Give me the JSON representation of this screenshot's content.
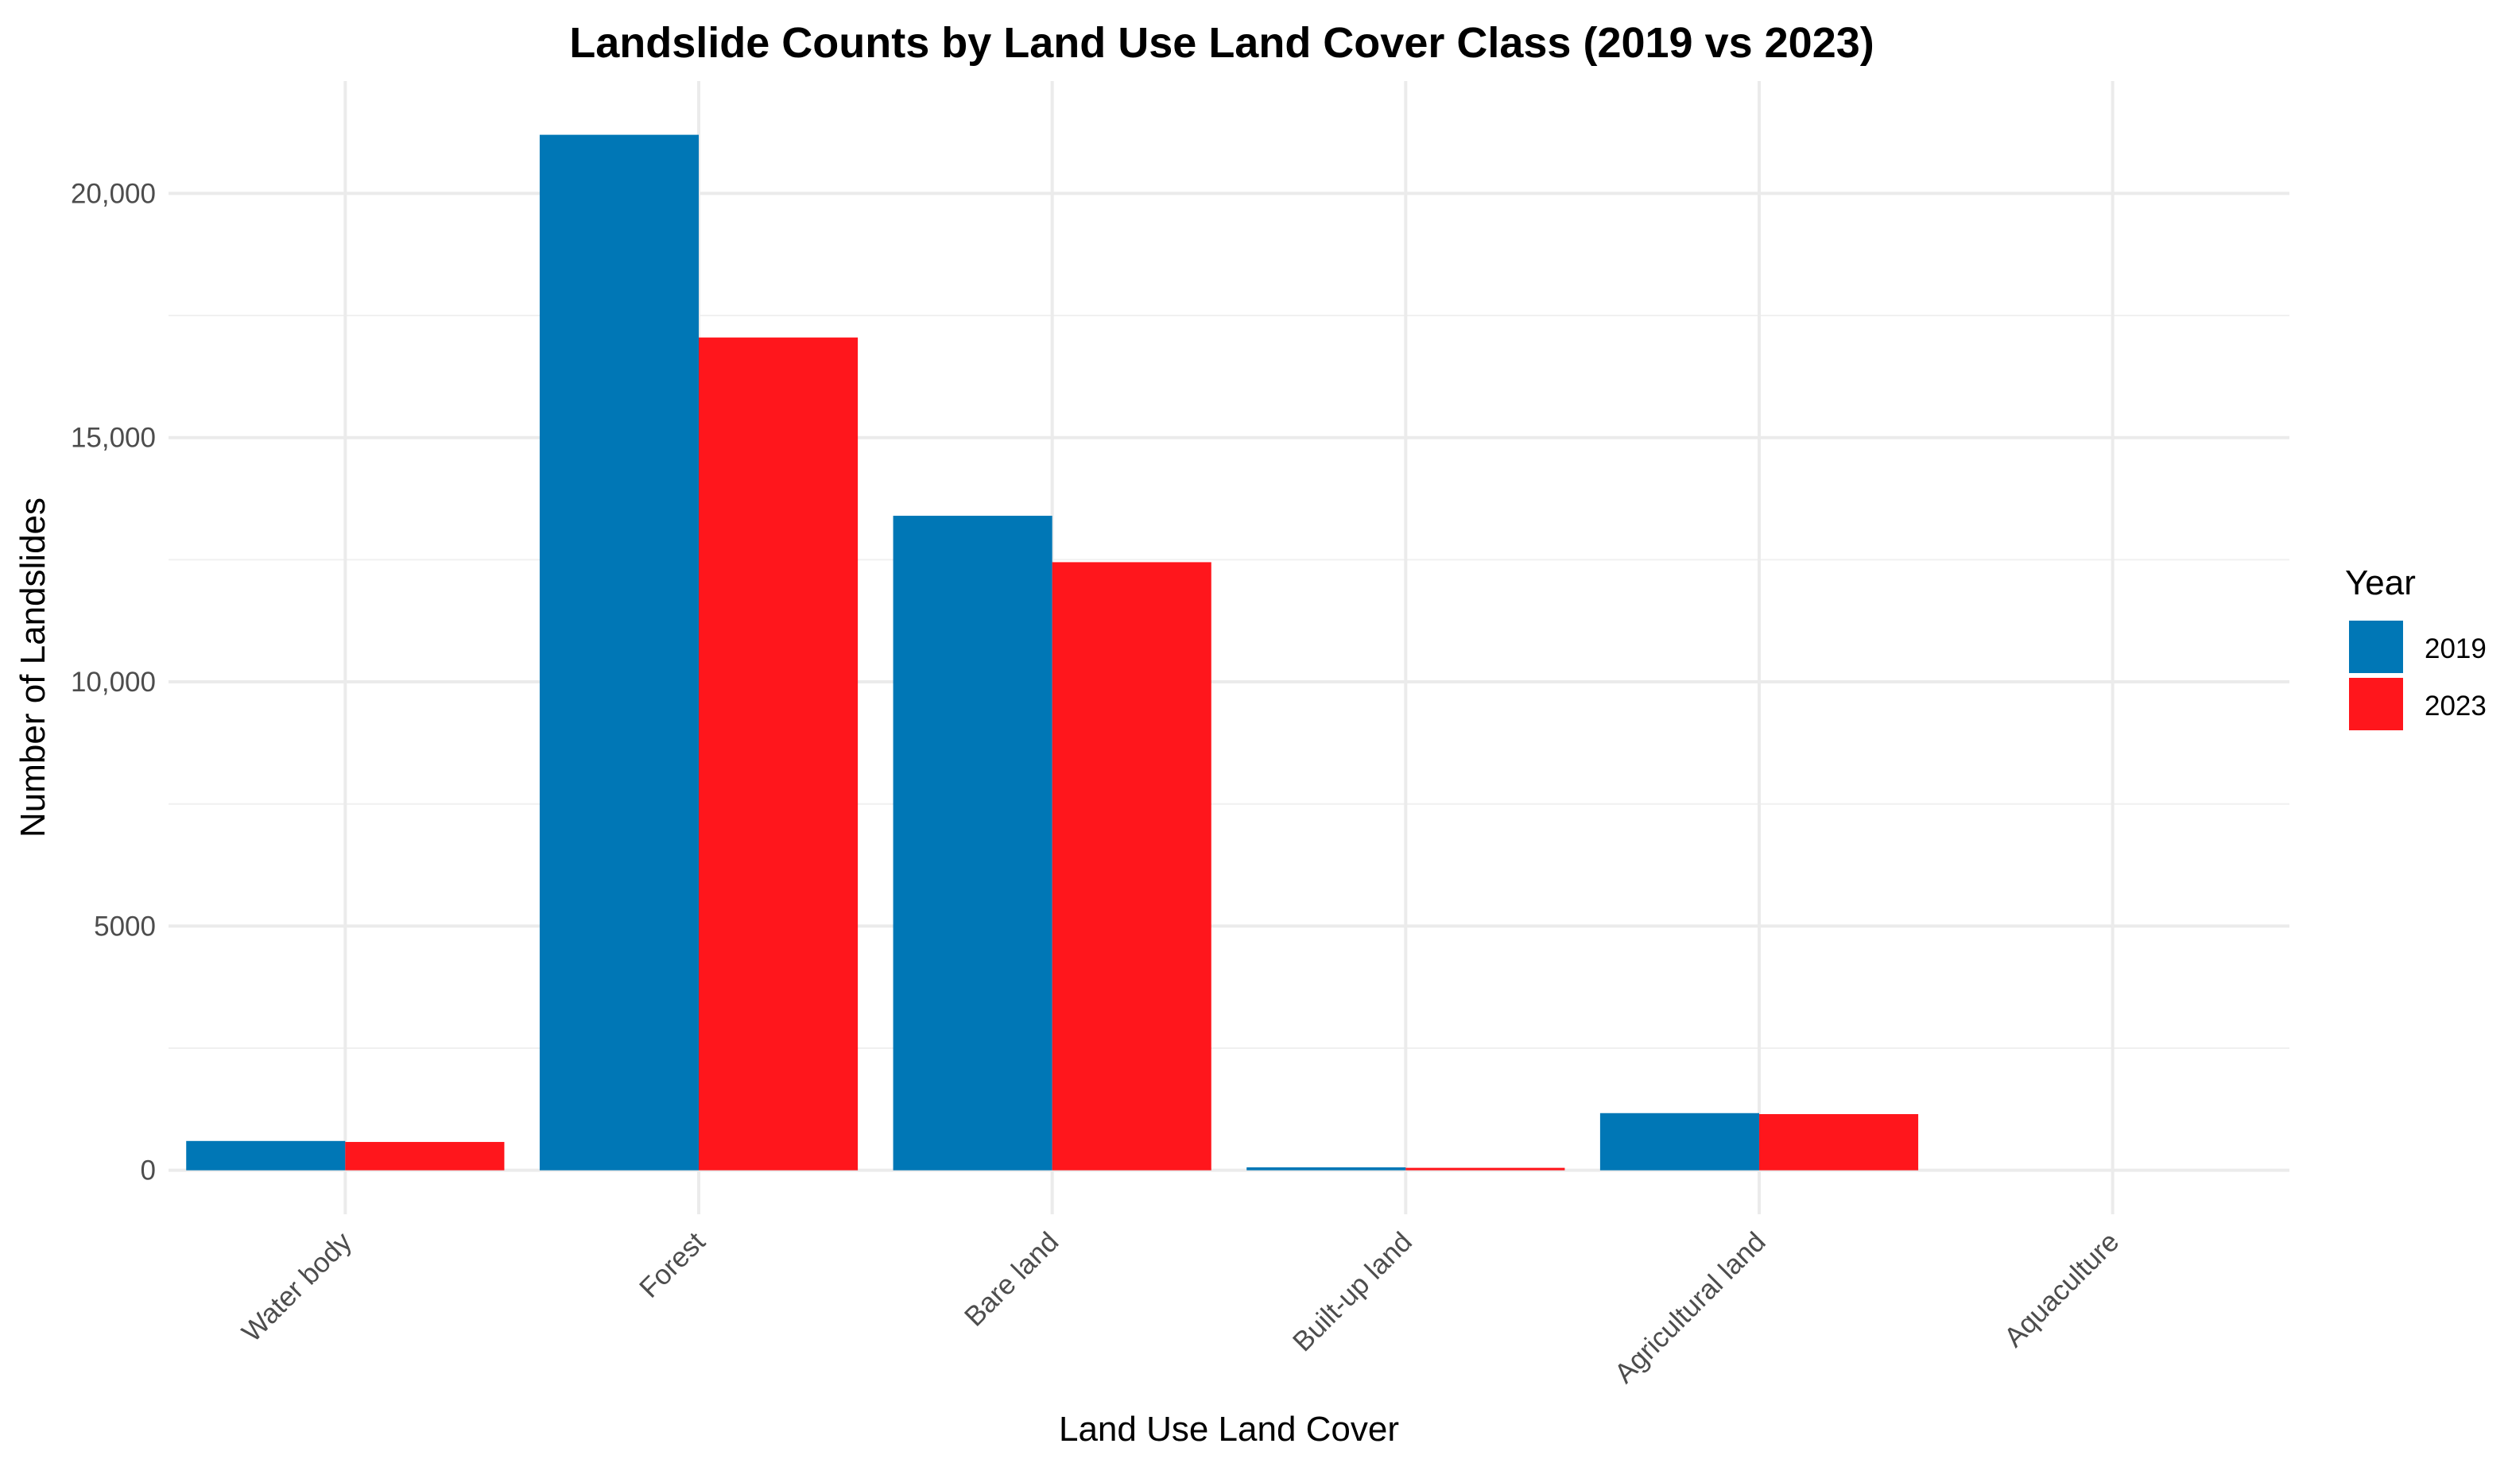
{
  "chart_data": {
    "type": "bar",
    "title": "Landslide Counts by Land Use Land Cover Class (2019 vs 2023)",
    "xlabel": "Land Use Land Cover",
    "ylabel": "Number of Landslides",
    "categories": [
      "Water body",
      "Forest",
      "Bare land",
      "Built-up land",
      "Agricultural land",
      "Aquaculture"
    ],
    "series": [
      {
        "name": "2019",
        "color": "#0077b6",
        "values": [
          600,
          21200,
          13400,
          60,
          1170,
          0
        ]
      },
      {
        "name": "2023",
        "color": "#ff161c",
        "values": [
          580,
          17050,
          12450,
          50,
          1150,
          0
        ]
      }
    ],
    "ylim": [
      -900,
      22300
    ],
    "yticks": [
      0,
      5000,
      10000,
      15000,
      20000
    ],
    "ytick_labels": [
      "0",
      "5000",
      "10,000",
      "15,000",
      "20,000"
    ],
    "legend": {
      "title": "Year",
      "placement": "right"
    },
    "grid": true
  }
}
